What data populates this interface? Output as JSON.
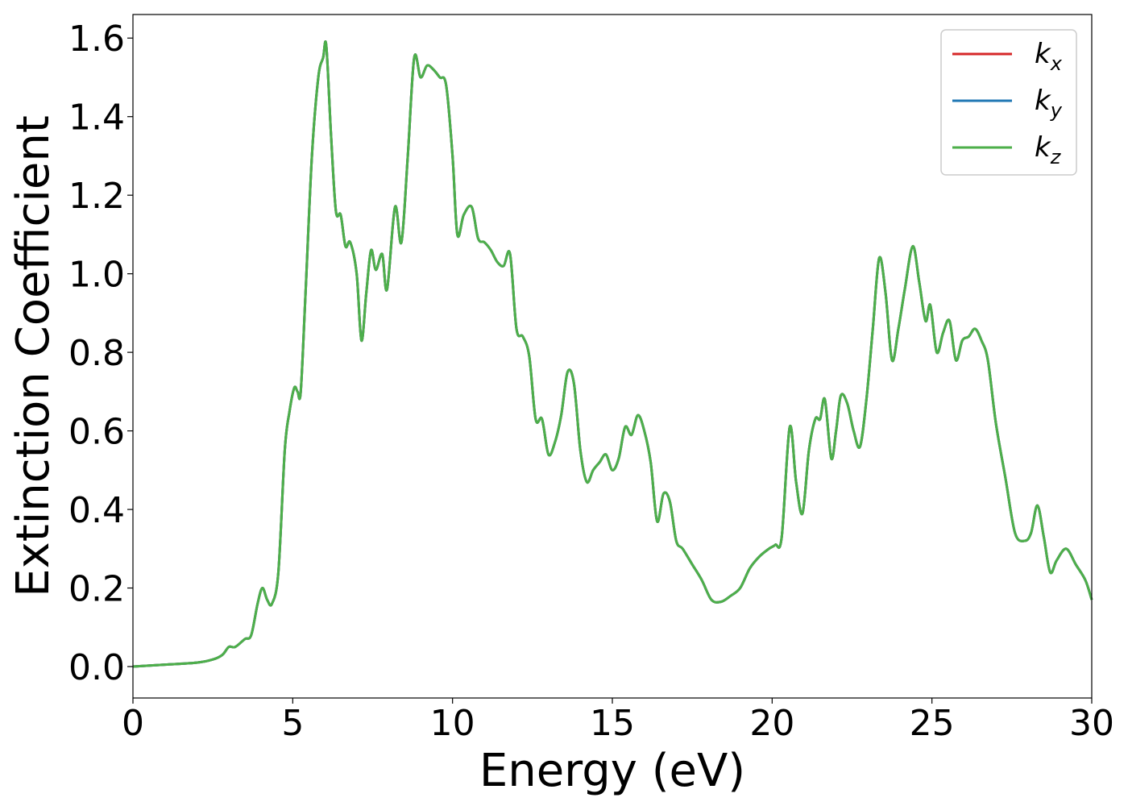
{
  "chart_data": {
    "type": "line",
    "title": "",
    "xlabel": "Energy (eV)",
    "ylabel": "Extinction Coefficient",
    "xlim": [
      0,
      30
    ],
    "ylim": [
      -0.08,
      1.66
    ],
    "xticks": [
      "0",
      "5",
      "10",
      "15",
      "20",
      "25",
      "30"
    ],
    "yticks": [
      "0.0",
      "0.2",
      "0.4",
      "0.6",
      "0.8",
      "1.0",
      "1.2",
      "1.4",
      "1.6"
    ],
    "grid": false,
    "legend_position": "top-right",
    "legend": [
      {
        "key": "k",
        "sub": "x",
        "color": "#d62728"
      },
      {
        "key": "k",
        "sub": "y",
        "color": "#1f77b4"
      },
      {
        "key": "k",
        "sub": "z",
        "color": "#4daf4a"
      }
    ],
    "series": [
      {
        "name": "kx",
        "color": "#d62728",
        "x": [
          0,
          1,
          2,
          2.5,
          2.8,
          3.0,
          3.2,
          3.5,
          3.7,
          3.9,
          4.05,
          4.2,
          4.35,
          4.55,
          4.75,
          4.9,
          5.05,
          5.15,
          5.25,
          5.4,
          5.6,
          5.8,
          5.95,
          6.05,
          6.2,
          6.35,
          6.5,
          6.65,
          6.8,
          7.0,
          7.15,
          7.3,
          7.45,
          7.6,
          7.8,
          7.95,
          8.2,
          8.4,
          8.6,
          8.8,
          9.0,
          9.2,
          9.4,
          9.6,
          9.8,
          10.0,
          10.15,
          10.35,
          10.6,
          10.8,
          11.0,
          11.2,
          11.4,
          11.6,
          11.8,
          12.0,
          12.2,
          12.4,
          12.6,
          12.8,
          13.0,
          13.2,
          13.4,
          13.6,
          13.8,
          14.0,
          14.2,
          14.4,
          14.6,
          14.8,
          15.0,
          15.2,
          15.4,
          15.6,
          15.8,
          16.0,
          16.2,
          16.4,
          16.6,
          16.8,
          17.0,
          17.2,
          17.5,
          17.8,
          18.1,
          18.4,
          18.7,
          19.0,
          19.3,
          19.6,
          19.9,
          20.1,
          20.3,
          20.55,
          20.75,
          20.95,
          21.15,
          21.35,
          21.5,
          21.65,
          21.85,
          22.0,
          22.15,
          22.35,
          22.55,
          22.75,
          22.95,
          23.15,
          23.35,
          23.55,
          23.75,
          23.95,
          24.15,
          24.4,
          24.6,
          24.8,
          24.95,
          25.15,
          25.35,
          25.55,
          25.75,
          25.95,
          26.15,
          26.35,
          26.55,
          26.75,
          27.0,
          27.3,
          27.6,
          27.9,
          28.1,
          28.3,
          28.5,
          28.7,
          28.9,
          29.2,
          29.5,
          29.8,
          30.0
        ],
        "values": [
          0.0,
          0.005,
          0.01,
          0.018,
          0.03,
          0.05,
          0.05,
          0.07,
          0.08,
          0.16,
          0.2,
          0.17,
          0.16,
          0.24,
          0.55,
          0.65,
          0.71,
          0.7,
          0.7,
          0.95,
          1.3,
          1.5,
          1.55,
          1.58,
          1.35,
          1.16,
          1.15,
          1.07,
          1.08,
          1.0,
          0.83,
          0.95,
          1.06,
          1.01,
          1.05,
          0.96,
          1.17,
          1.08,
          1.3,
          1.55,
          1.5,
          1.53,
          1.52,
          1.5,
          1.48,
          1.3,
          1.1,
          1.15,
          1.17,
          1.09,
          1.08,
          1.06,
          1.03,
          1.02,
          1.05,
          0.86,
          0.84,
          0.79,
          0.63,
          0.63,
          0.54,
          0.57,
          0.64,
          0.75,
          0.72,
          0.55,
          0.47,
          0.5,
          0.52,
          0.54,
          0.5,
          0.53,
          0.61,
          0.59,
          0.64,
          0.6,
          0.52,
          0.37,
          0.44,
          0.42,
          0.32,
          0.3,
          0.26,
          0.22,
          0.17,
          0.165,
          0.18,
          0.2,
          0.25,
          0.28,
          0.3,
          0.31,
          0.33,
          0.61,
          0.47,
          0.39,
          0.55,
          0.63,
          0.63,
          0.68,
          0.53,
          0.6,
          0.69,
          0.67,
          0.6,
          0.56,
          0.68,
          0.86,
          1.04,
          0.95,
          0.78,
          0.86,
          0.96,
          1.07,
          0.98,
          0.88,
          0.92,
          0.8,
          0.85,
          0.88,
          0.78,
          0.83,
          0.84,
          0.86,
          0.83,
          0.78,
          0.62,
          0.48,
          0.34,
          0.32,
          0.34,
          0.41,
          0.33,
          0.24,
          0.27,
          0.3,
          0.26,
          0.22,
          0.17
        ]
      },
      {
        "name": "ky",
        "color": "#1f77b4",
        "x": [
          0,
          1,
          2,
          2.5,
          2.8,
          3.0,
          3.2,
          3.5,
          3.7,
          3.9,
          4.05,
          4.2,
          4.35,
          4.55,
          4.75,
          4.9,
          5.05,
          5.15,
          5.25,
          5.4,
          5.6,
          5.8,
          5.95,
          6.05,
          6.2,
          6.35,
          6.5,
          6.65,
          6.8,
          7.0,
          7.15,
          7.3,
          7.45,
          7.6,
          7.8,
          7.95,
          8.2,
          8.4,
          8.6,
          8.8,
          9.0,
          9.2,
          9.4,
          9.6,
          9.8,
          10.0,
          10.15,
          10.35,
          10.6,
          10.8,
          11.0,
          11.2,
          11.4,
          11.6,
          11.8,
          12.0,
          12.2,
          12.4,
          12.6,
          12.8,
          13.0,
          13.2,
          13.4,
          13.6,
          13.8,
          14.0,
          14.2,
          14.4,
          14.6,
          14.8,
          15.0,
          15.2,
          15.4,
          15.6,
          15.8,
          16.0,
          16.2,
          16.4,
          16.6,
          16.8,
          17.0,
          17.2,
          17.5,
          17.8,
          18.1,
          18.4,
          18.7,
          19.0,
          19.3,
          19.6,
          19.9,
          20.1,
          20.3,
          20.55,
          20.75,
          20.95,
          21.15,
          21.35,
          21.5,
          21.65,
          21.85,
          22.0,
          22.15,
          22.35,
          22.55,
          22.75,
          22.95,
          23.15,
          23.35,
          23.55,
          23.75,
          23.95,
          24.15,
          24.4,
          24.6,
          24.8,
          24.95,
          25.15,
          25.35,
          25.55,
          25.75,
          25.95,
          26.15,
          26.35,
          26.55,
          26.75,
          27.0,
          27.3,
          27.6,
          27.9,
          28.1,
          28.3,
          28.5,
          28.7,
          28.9,
          29.2,
          29.5,
          29.8,
          30.0
        ],
        "values": [
          0.0,
          0.005,
          0.01,
          0.018,
          0.03,
          0.05,
          0.05,
          0.07,
          0.08,
          0.16,
          0.2,
          0.17,
          0.16,
          0.24,
          0.55,
          0.65,
          0.71,
          0.7,
          0.7,
          0.95,
          1.3,
          1.5,
          1.55,
          1.58,
          1.35,
          1.16,
          1.15,
          1.07,
          1.08,
          1.0,
          0.83,
          0.95,
          1.06,
          1.01,
          1.05,
          0.96,
          1.17,
          1.08,
          1.3,
          1.55,
          1.5,
          1.53,
          1.52,
          1.5,
          1.48,
          1.3,
          1.1,
          1.15,
          1.17,
          1.09,
          1.08,
          1.06,
          1.03,
          1.02,
          1.05,
          0.86,
          0.84,
          0.79,
          0.63,
          0.63,
          0.54,
          0.57,
          0.64,
          0.75,
          0.72,
          0.55,
          0.47,
          0.5,
          0.52,
          0.54,
          0.5,
          0.53,
          0.61,
          0.59,
          0.64,
          0.6,
          0.52,
          0.37,
          0.44,
          0.42,
          0.32,
          0.3,
          0.26,
          0.22,
          0.17,
          0.165,
          0.18,
          0.2,
          0.25,
          0.28,
          0.3,
          0.31,
          0.33,
          0.61,
          0.47,
          0.39,
          0.55,
          0.63,
          0.63,
          0.68,
          0.53,
          0.6,
          0.69,
          0.67,
          0.6,
          0.56,
          0.68,
          0.86,
          1.04,
          0.95,
          0.78,
          0.86,
          0.96,
          1.07,
          0.98,
          0.88,
          0.92,
          0.8,
          0.85,
          0.88,
          0.78,
          0.83,
          0.84,
          0.86,
          0.83,
          0.78,
          0.62,
          0.48,
          0.34,
          0.32,
          0.34,
          0.41,
          0.33,
          0.24,
          0.27,
          0.3,
          0.26,
          0.22,
          0.17
        ]
      },
      {
        "name": "kz",
        "color": "#4daf4a",
        "x": [
          0,
          1,
          2,
          2.5,
          2.8,
          3.0,
          3.2,
          3.5,
          3.7,
          3.9,
          4.05,
          4.2,
          4.35,
          4.55,
          4.75,
          4.9,
          5.05,
          5.15,
          5.25,
          5.4,
          5.6,
          5.8,
          5.95,
          6.05,
          6.2,
          6.35,
          6.5,
          6.65,
          6.8,
          7.0,
          7.15,
          7.3,
          7.45,
          7.6,
          7.8,
          7.95,
          8.2,
          8.4,
          8.6,
          8.8,
          9.0,
          9.2,
          9.4,
          9.6,
          9.8,
          10.0,
          10.15,
          10.35,
          10.6,
          10.8,
          11.0,
          11.2,
          11.4,
          11.6,
          11.8,
          12.0,
          12.2,
          12.4,
          12.6,
          12.8,
          13.0,
          13.2,
          13.4,
          13.6,
          13.8,
          14.0,
          14.2,
          14.4,
          14.6,
          14.8,
          15.0,
          15.2,
          15.4,
          15.6,
          15.8,
          16.0,
          16.2,
          16.4,
          16.6,
          16.8,
          17.0,
          17.2,
          17.5,
          17.8,
          18.1,
          18.4,
          18.7,
          19.0,
          19.3,
          19.6,
          19.9,
          20.1,
          20.3,
          20.55,
          20.75,
          20.95,
          21.15,
          21.35,
          21.5,
          21.65,
          21.85,
          22.0,
          22.15,
          22.35,
          22.55,
          22.75,
          22.95,
          23.15,
          23.35,
          23.55,
          23.75,
          23.95,
          24.15,
          24.4,
          24.6,
          24.8,
          24.95,
          25.15,
          25.35,
          25.55,
          25.75,
          25.95,
          26.15,
          26.35,
          26.55,
          26.75,
          27.0,
          27.3,
          27.6,
          27.9,
          28.1,
          28.3,
          28.5,
          28.7,
          28.9,
          29.2,
          29.5,
          29.8,
          30.0
        ],
        "values": [
          0.0,
          0.005,
          0.01,
          0.018,
          0.03,
          0.05,
          0.05,
          0.07,
          0.08,
          0.16,
          0.2,
          0.17,
          0.16,
          0.24,
          0.55,
          0.65,
          0.71,
          0.7,
          0.7,
          0.95,
          1.3,
          1.5,
          1.55,
          1.58,
          1.35,
          1.16,
          1.15,
          1.07,
          1.08,
          1.0,
          0.83,
          0.95,
          1.06,
          1.01,
          1.05,
          0.96,
          1.17,
          1.08,
          1.3,
          1.55,
          1.5,
          1.53,
          1.52,
          1.5,
          1.48,
          1.3,
          1.1,
          1.15,
          1.17,
          1.09,
          1.08,
          1.06,
          1.03,
          1.02,
          1.05,
          0.86,
          0.84,
          0.79,
          0.63,
          0.63,
          0.54,
          0.57,
          0.64,
          0.75,
          0.72,
          0.55,
          0.47,
          0.5,
          0.52,
          0.54,
          0.5,
          0.53,
          0.61,
          0.59,
          0.64,
          0.6,
          0.52,
          0.37,
          0.44,
          0.42,
          0.32,
          0.3,
          0.26,
          0.22,
          0.17,
          0.165,
          0.18,
          0.2,
          0.25,
          0.28,
          0.3,
          0.31,
          0.33,
          0.61,
          0.47,
          0.39,
          0.55,
          0.63,
          0.63,
          0.68,
          0.53,
          0.6,
          0.69,
          0.67,
          0.6,
          0.56,
          0.68,
          0.86,
          1.04,
          0.95,
          0.78,
          0.86,
          0.96,
          1.07,
          0.98,
          0.88,
          0.92,
          0.8,
          0.85,
          0.88,
          0.78,
          0.83,
          0.84,
          0.86,
          0.83,
          0.78,
          0.62,
          0.48,
          0.34,
          0.32,
          0.34,
          0.41,
          0.33,
          0.24,
          0.27,
          0.3,
          0.26,
          0.22,
          0.17
        ]
      }
    ]
  }
}
